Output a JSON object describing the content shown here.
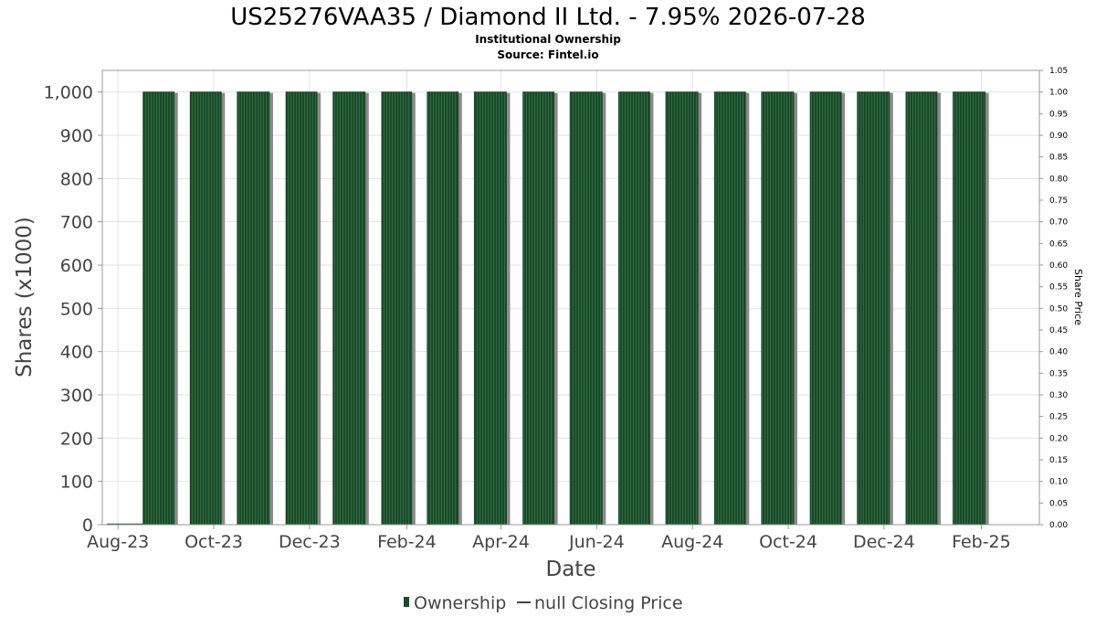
{
  "chart_data": {
    "type": "bar",
    "title": "US25276VAA35 / Diamond II Ltd. - 7.95% 2026-07-28",
    "subtitles": [
      "Institutional Ownership",
      "Source: Fintel.io"
    ],
    "xlabel": "Date",
    "ylabel": "Shares (x1000)",
    "y2label": "Share Price",
    "ylim": [
      0,
      1050
    ],
    "y2lim": [
      0,
      1.05
    ],
    "xlim": [
      "2023-07-22",
      "2025-03-10"
    ],
    "yticks": [
      0,
      100,
      200,
      300,
      400,
      500,
      600,
      700,
      800,
      900,
      1000
    ],
    "ytick_labels": [
      "0",
      "100",
      "200",
      "300",
      "400",
      "500",
      "600",
      "700",
      "800",
      "900",
      "1,000"
    ],
    "y2ticks": [
      0.0,
      0.05,
      0.1,
      0.15,
      0.2,
      0.25,
      0.3,
      0.35,
      0.4,
      0.45,
      0.5,
      0.55,
      0.6,
      0.65,
      0.7,
      0.75,
      0.8,
      0.85,
      0.9,
      0.95,
      1.0,
      1.05
    ],
    "y2tick_labels": [
      "0.00",
      "0.05",
      "0.10",
      "0.15",
      "0.20",
      "0.25",
      "0.30",
      "0.35",
      "0.40",
      "0.45",
      "0.50",
      "0.55",
      "0.60",
      "0.65",
      "0.70",
      "0.75",
      "0.80",
      "0.85",
      "0.90",
      "0.95",
      "1.00",
      "1.05"
    ],
    "xticks": [
      "2023-08-01",
      "2023-10-01",
      "2023-12-01",
      "2024-02-01",
      "2024-04-01",
      "2024-06-01",
      "2024-08-01",
      "2024-10-01",
      "2024-12-01",
      "2025-02-01"
    ],
    "xtick_labels": [
      "Aug-23",
      "Oct-23",
      "Dec-23",
      "Feb-24",
      "Apr-24",
      "Jun-24",
      "Aug-24",
      "Oct-24",
      "Dec-24",
      "Feb-25"
    ],
    "bars": [
      {
        "start": "2023-08-17",
        "end": "2023-09-16",
        "value": 1000
      },
      {
        "start": "2023-09-16",
        "end": "2023-10-16",
        "value": 1000
      },
      {
        "start": "2023-10-16",
        "end": "2023-11-16",
        "value": 1000
      },
      {
        "start": "2023-11-16",
        "end": "2023-12-16",
        "value": 1000
      },
      {
        "start": "2023-12-16",
        "end": "2024-01-16",
        "value": 1000
      },
      {
        "start": "2024-01-16",
        "end": "2024-02-14",
        "value": 1000
      },
      {
        "start": "2024-02-14",
        "end": "2024-03-15",
        "value": 1000
      },
      {
        "start": "2024-03-15",
        "end": "2024-04-15",
        "value": 1000
      },
      {
        "start": "2024-04-15",
        "end": "2024-05-15",
        "value": 1000
      },
      {
        "start": "2024-05-15",
        "end": "2024-06-15",
        "value": 1000
      },
      {
        "start": "2024-06-15",
        "end": "2024-07-15",
        "value": 1000
      },
      {
        "start": "2024-07-15",
        "end": "2024-08-15",
        "value": 1000
      },
      {
        "start": "2024-08-15",
        "end": "2024-09-14",
        "value": 1000
      },
      {
        "start": "2024-09-14",
        "end": "2024-10-15",
        "value": 1000
      },
      {
        "start": "2024-10-15",
        "end": "2024-11-14",
        "value": 1000
      },
      {
        "start": "2024-11-14",
        "end": "2024-12-15",
        "value": 1000
      },
      {
        "start": "2024-12-15",
        "end": "2025-01-14",
        "value": 1000
      },
      {
        "start": "2025-01-14",
        "end": "2025-02-14",
        "value": 1000
      }
    ],
    "baseline_start": "2023-07-25",
    "legend": [
      {
        "label": "Ownership",
        "color": "#1a4a2a"
      },
      {
        "label": "null Closing Price",
        "color": "#444444"
      }
    ],
    "legend_position": "bottom",
    "grid": true,
    "colors": {
      "bar": "#1a4a2a",
      "bar_stripe": "#2f6b3f",
      "bar_shadow": "#8a8a8a",
      "grid": "#e2e2e2",
      "frame": "#999999"
    }
  }
}
